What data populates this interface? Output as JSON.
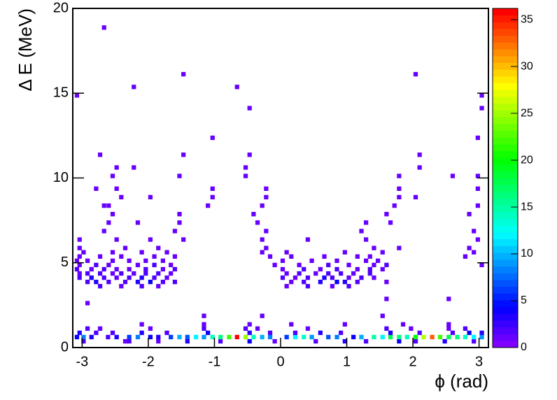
{
  "chart_data": {
    "type": "heatmap",
    "x_label": "ϕ (rad)",
    "y_label": "Δ E (MeV)",
    "xlim": [
      -3.1416,
      3.1416
    ],
    "ylim": [
      0,
      20
    ],
    "zlim": [
      0,
      36.2
    ],
    "nbins_x": 100,
    "nbins_y": 80,
    "xticks": [
      -3,
      -2,
      -1,
      0,
      1,
      2,
      3
    ],
    "yticks": [
      0,
      5,
      10,
      15,
      20
    ],
    "zticks": [
      0,
      5,
      10,
      15,
      20,
      25,
      30,
      35
    ],
    "rows": [
      {
        "y": 0.375,
        "x": [
          -2.98,
          -2.35,
          -2.29,
          -1.85,
          -1.41,
          -0.91,
          -0.47,
          -0.09,
          0.53,
          0.97,
          1.29,
          1.79,
          2.04,
          2.48,
          2.92
        ],
        "values": [
          2,
          1,
          2,
          1,
          3,
          2,
          4,
          1,
          2,
          3,
          2,
          4,
          2,
          3,
          2
        ]
      },
      {
        "y": 0.625,
        "x": [
          -3.08,
          -2.98,
          -2.86,
          -2.61,
          -2.48,
          -2.29,
          -2.16,
          -1.97,
          -1.85,
          -1.66,
          -1.53,
          -1.41,
          -1.28,
          -1.16,
          -1.03,
          -0.91,
          -0.78,
          -0.66,
          -0.53,
          -0.41,
          -0.28,
          -0.16,
          0.09,
          0.22,
          0.35,
          0.47,
          0.72,
          0.85,
          1.1,
          1.22,
          1.41,
          1.54,
          1.66,
          1.79,
          1.91,
          2.04,
          2.16,
          2.29,
          2.41,
          2.54,
          2.67,
          2.79,
          2.92,
          3.04
        ],
        "values": [
          4,
          8,
          3,
          2,
          3,
          6,
          8,
          4,
          3,
          6,
          10,
          7,
          12,
          9,
          14,
          16,
          22,
          36,
          25,
          14,
          10,
          8,
          6,
          12,
          14,
          9,
          7,
          8,
          4,
          10,
          15,
          12,
          18,
          16,
          14,
          20,
          26,
          33,
          22,
          18,
          16,
          14,
          12,
          9
        ]
      },
      {
        "y": 0.875,
        "x": [
          -3.04,
          -2.79,
          -2.54,
          -2.1,
          -1.72,
          -1.1,
          -0.47,
          -0.16,
          0.22,
          0.6,
          0.91,
          1.66,
          2.1,
          2.6,
          2.85,
          3.04
        ],
        "values": [
          3,
          2,
          2,
          3,
          2,
          4,
          3,
          2,
          2,
          3,
          2,
          3,
          2,
          2,
          4,
          3
        ]
      },
      {
        "y": 1.125,
        "x": [
          -2.92,
          -2.73,
          -1.97,
          -1.16,
          -0.53,
          -0.35,
          0.41,
          1.6,
          1.97,
          2.54,
          2.79
        ],
        "values": [
          2,
          1,
          1,
          2,
          2,
          1,
          1,
          2,
          1,
          1,
          2
        ]
      },
      {
        "y": 1.375,
        "x": [
          -2.1,
          -1.16,
          -0.47,
          0.16,
          0.97,
          1.85,
          2.54
        ],
        "values": [
          1,
          1,
          1,
          1,
          1,
          1,
          1
        ]
      },
      {
        "y": 1.875,
        "x": [
          -1.16,
          -0.28,
          1.54
        ],
        "values": [
          1,
          1,
          1
        ]
      },
      {
        "y": 2.625,
        "x": [
          -2.92
        ],
        "values": [
          1
        ]
      },
      {
        "y": 2.875,
        "x": [
          1.6,
          2.54
        ],
        "values": [
          1,
          1
        ]
      },
      {
        "y": 3.625,
        "x": [
          -2.73,
          -2.41,
          -2.1,
          -1.85,
          0.09,
          0.41,
          0.78,
          1.03
        ],
        "values": [
          2,
          1,
          2,
          1,
          1,
          2,
          1,
          2
        ]
      },
      {
        "y": 3.875,
        "x": [
          -2.92,
          -2.79,
          -2.6,
          -2.35,
          -2.16,
          -1.97,
          -1.78,
          -1.6,
          0.16,
          0.35,
          0.6,
          0.85,
          0.97,
          1.16,
          1.6
        ],
        "values": [
          2,
          3,
          2,
          2,
          3,
          4,
          2,
          2,
          1,
          2,
          3,
          4,
          3,
          2,
          1
        ]
      },
      {
        "y": 4.125,
        "x": [
          -3.04,
          -2.86,
          -2.67,
          -2.48,
          -2.29,
          -2.1,
          -1.91,
          -1.72,
          0.03,
          0.22,
          0.41,
          0.66,
          0.78,
          1.03,
          1.22,
          1.41
        ],
        "values": [
          2,
          3,
          2,
          1,
          2,
          3,
          2,
          1,
          2,
          1,
          2,
          3,
          2,
          1,
          2,
          1
        ]
      },
      {
        "y": 4.375,
        "x": [
          -3.04,
          -2.92,
          -2.73,
          -2.54,
          -2.41,
          -2.22,
          -2.04,
          -1.85,
          -1.66,
          0.09,
          0.28,
          0.53,
          0.72,
          0.91,
          1.1,
          1.35
        ],
        "values": [
          1,
          2,
          2,
          1,
          2,
          1,
          2,
          2,
          1,
          1,
          2,
          1,
          2,
          2,
          1,
          2
        ]
      },
      {
        "y": 4.625,
        "x": [
          -3.08,
          -2.86,
          -2.67,
          -2.48,
          -2.29,
          -2.04,
          -1.78,
          -1.6,
          0.03,
          0.35,
          0.6,
          0.85,
          1.16,
          1.35,
          1.54
        ],
        "values": [
          2,
          1,
          2,
          1,
          1,
          2,
          1,
          2,
          1,
          2,
          1,
          2,
          1,
          2,
          1
        ]
      },
      {
        "y": 4.875,
        "x": [
          -3.04,
          -2.79,
          -2.6,
          -2.16,
          -1.91,
          -1.66,
          -0.09,
          0.28,
          0.72,
          1.03,
          1.41,
          1.6,
          3.04
        ],
        "values": [
          1,
          2,
          1,
          1,
          2,
          1,
          1,
          1,
          2,
          1,
          1,
          2,
          1
        ]
      },
      {
        "y": 5.125,
        "x": [
          -3.08,
          -2.92,
          -2.54,
          -2.29,
          -2.04,
          -1.78,
          0.03,
          0.47,
          0.85,
          1.29,
          1.47
        ],
        "values": [
          1,
          1,
          1,
          1,
          1,
          1,
          1,
          1,
          1,
          1,
          1
        ]
      },
      {
        "y": 5.375,
        "x": [
          -3.04,
          -2.73,
          -2.41,
          -1.91,
          -1.6,
          -0.16,
          0.16,
          0.66,
          1.16,
          1.35,
          2.79
        ],
        "values": [
          1,
          1,
          1,
          1,
          1,
          1,
          1,
          1,
          1,
          1,
          1
        ]
      },
      {
        "y": 5.625,
        "x": [
          -2.98,
          -2.54,
          -2.1,
          -1.72,
          -0.28,
          0.09,
          0.97,
          1.54,
          2.92
        ],
        "values": [
          1,
          1,
          1,
          1,
          1,
          1,
          1,
          1,
          1
        ]
      },
      {
        "y": 5.875,
        "x": [
          -3.04,
          -2.35,
          -1.85,
          -0.22,
          1.41,
          1.79,
          2.85
        ],
        "values": [
          1,
          1,
          1,
          1,
          1,
          1,
          1
        ]
      },
      {
        "y": 6.375,
        "x": [
          -3.04,
          -2.48,
          -1.97,
          -1.47,
          -0.28,
          0.41,
          1.29,
          2.98
        ],
        "values": [
          1,
          1,
          1,
          1,
          1,
          1,
          1,
          1
        ]
      },
      {
        "y": 6.875,
        "x": [
          -2.67,
          -1.6,
          -0.22,
          1.22,
          2.92
        ],
        "values": [
          1,
          1,
          1,
          1,
          1
        ]
      },
      {
        "y": 7.375,
        "x": [
          -2.6,
          -2.16,
          -1.53,
          -0.35,
          1.29,
          1.66
        ],
        "values": [
          1,
          1,
          1,
          1,
          1,
          1
        ]
      },
      {
        "y": 7.875,
        "x": [
          -2.54,
          -1.53,
          -0.41,
          1.6,
          2.85
        ],
        "values": [
          1,
          1,
          1,
          1,
          1
        ]
      },
      {
        "y": 8.375,
        "x": [
          -2.67,
          -2.6,
          -1.1,
          -0.28,
          1.72,
          2.98
        ],
        "values": [
          1,
          1,
          1,
          1,
          1,
          1
        ]
      },
      {
        "y": 8.875,
        "x": [
          -2.41,
          -1.97,
          -1.03,
          -0.22,
          1.79,
          2.04
        ],
        "values": [
          1,
          1,
          1,
          1,
          1,
          1
        ]
      },
      {
        "y": 9.375,
        "x": [
          -2.79,
          -2.48,
          -1.03,
          -0.22,
          1.79,
          2.98
        ],
        "values": [
          1,
          1,
          1,
          1,
          1,
          1
        ]
      },
      {
        "y": 10.125,
        "x": [
          -2.54,
          -1.53,
          -0.53,
          1.79,
          2.6,
          2.98
        ],
        "values": [
          1,
          1,
          1,
          1,
          1,
          1
        ]
      },
      {
        "y": 10.625,
        "x": [
          -2.48,
          -2.22,
          -0.53,
          2.1
        ],
        "values": [
          1,
          1,
          1,
          1
        ]
      },
      {
        "y": 11.375,
        "x": [
          -2.73,
          -1.47,
          -0.47,
          2.1
        ],
        "values": [
          1,
          1,
          1,
          1
        ]
      },
      {
        "y": 12.375,
        "x": [
          -1.03,
          2.98
        ],
        "values": [
          1,
          1
        ]
      },
      {
        "y": 14.125,
        "x": [
          -0.47,
          3.04
        ],
        "values": [
          1,
          1
        ]
      },
      {
        "y": 14.875,
        "x": [
          -3.08,
          3.04
        ],
        "values": [
          1,
          1
        ]
      },
      {
        "y": 15.375,
        "x": [
          -2.22,
          -0.66
        ],
        "values": [
          1,
          1
        ]
      },
      {
        "y": 16.125,
        "x": [
          -1.47,
          2.04
        ],
        "values": [
          1,
          1
        ]
      },
      {
        "y": 18.875,
        "x": [
          -2.67
        ],
        "values": [
          1
        ]
      }
    ]
  }
}
